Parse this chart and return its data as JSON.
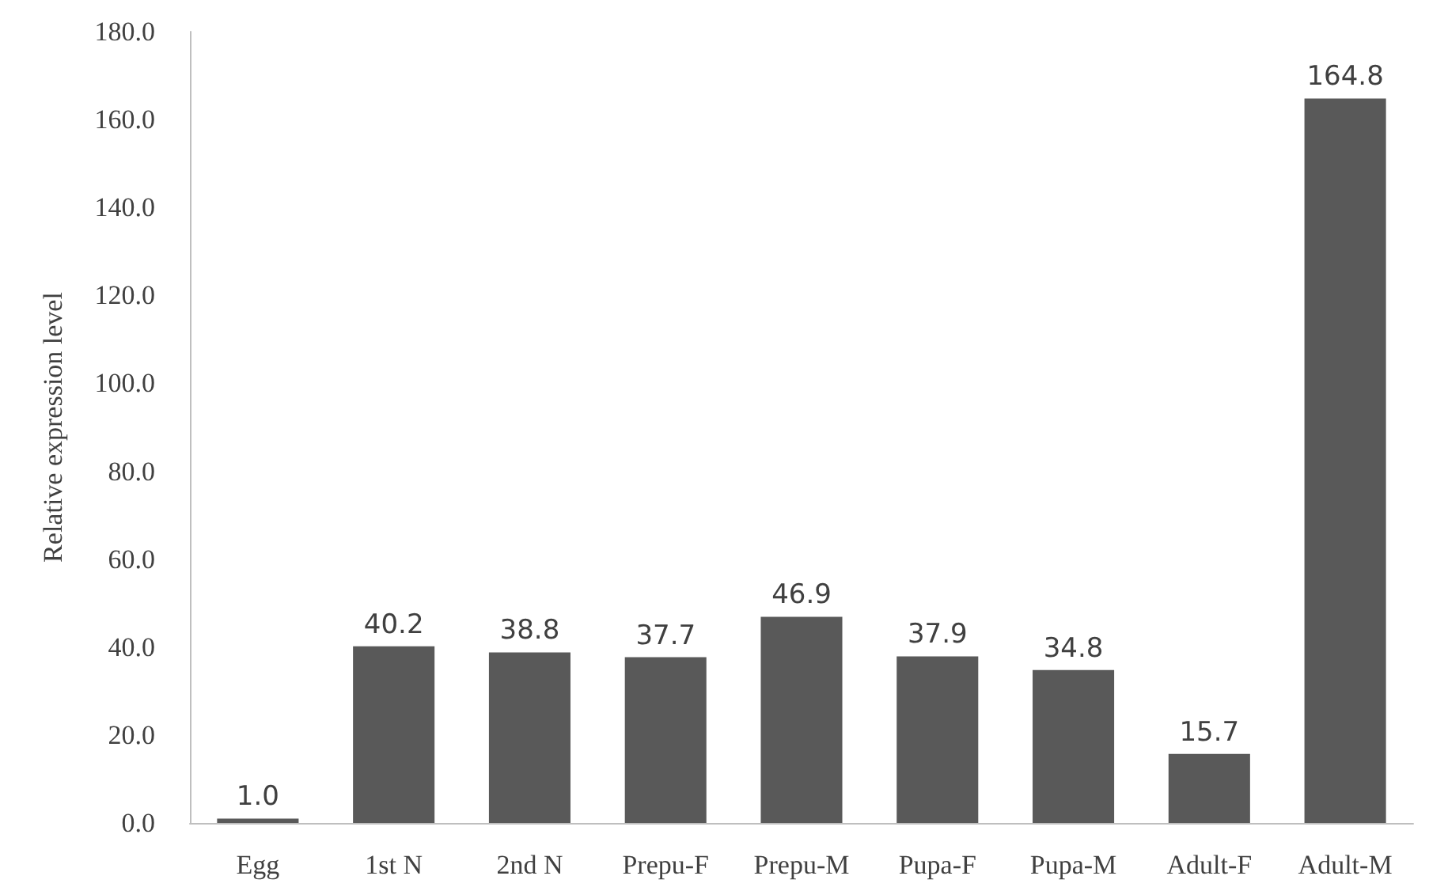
{
  "chart_data": {
    "type": "bar",
    "ylabel": "Relative expression level",
    "categories": [
      "Egg",
      "1st N",
      "2nd N",
      "Prepu-F",
      "Prepu-M",
      "Pupa-F",
      "Pupa-M",
      "Adult-F",
      "Adult-M"
    ],
    "values": [
      1.0,
      40.2,
      38.8,
      37.7,
      46.9,
      37.9,
      34.8,
      15.7,
      164.8
    ],
    "value_labels": [
      "1.0",
      "40.2",
      "38.8",
      "37.7",
      "46.9",
      "37.9",
      "34.8",
      "15.7",
      "164.8"
    ],
    "color": "#595959",
    "ylim": [
      0,
      180
    ],
    "yticks": [
      {
        "value": 0,
        "label": "0.0"
      },
      {
        "value": 20,
        "label": "20.0"
      },
      {
        "value": 40,
        "label": "40.0"
      },
      {
        "value": 60,
        "label": "60.0"
      },
      {
        "value": 80,
        "label": "80.0"
      },
      {
        "value": 100,
        "label": "100.0"
      },
      {
        "value": 120,
        "label": "120.0"
      },
      {
        "value": 140,
        "label": "140.0"
      },
      {
        "value": 160,
        "label": "160.0"
      },
      {
        "value": 180,
        "label": "180.0"
      }
    ],
    "grid": false
  }
}
